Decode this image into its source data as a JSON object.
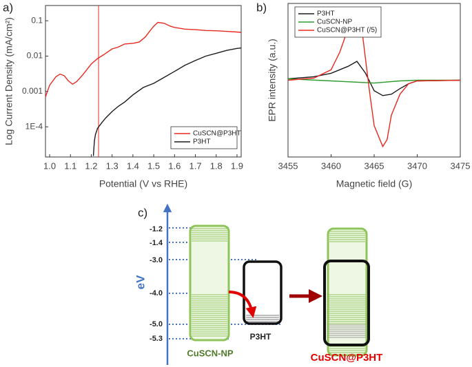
{
  "chart_data": [
    {
      "type": "line",
      "label": "a)",
      "x_label": "Potential (V vs RHE)",
      "y_label": "Log Current Density (mA/cm²)",
      "xlim": [
        0.98,
        1.92
      ],
      "xticks": [
        {
          "value": 1,
          "label": "1.0"
        },
        1.1,
        1.2,
        1.3,
        1.4,
        1.5,
        1.6,
        1.7,
        1.8,
        1.9
      ],
      "ylim": [
        1.4e-05,
        0.27
      ],
      "ylog": true,
      "yticks": [
        {
          "value": 0.0001,
          "label": "1E-4"
        },
        0.001,
        0.01,
        0.1
      ],
      "vline": 1.235,
      "vline_color": "#e8281e",
      "legend": "lower right",
      "series": [
        {
          "name": "CuSCN@P3HT",
          "color": "#e8281e",
          "x": [
            0.98,
            1.0,
            1.03,
            1.05,
            1.07,
            1.09,
            1.11,
            1.13,
            1.16,
            1.2,
            1.23,
            1.26,
            1.3,
            1.33,
            1.36,
            1.4,
            1.43,
            1.46,
            1.48,
            1.5,
            1.52,
            1.55,
            1.58,
            1.6,
            1.65,
            1.7,
            1.75,
            1.8,
            1.85,
            1.9,
            1.92
          ],
          "values": [
            0.0007,
            0.0015,
            0.0026,
            0.0031,
            0.0028,
            0.002,
            0.0016,
            0.0019,
            0.003,
            0.006,
            0.0085,
            0.011,
            0.016,
            0.018,
            0.022,
            0.023,
            0.025,
            0.035,
            0.05,
            0.07,
            0.09,
            0.085,
            0.07,
            0.065,
            0.058,
            0.056,
            0.053,
            0.052,
            0.05,
            0.048,
            0.047
          ]
        },
        {
          "name": "P3HT",
          "color": "#1a1a1a",
          "x": [
            1.21,
            1.215,
            1.22,
            1.23,
            1.25,
            1.27,
            1.3,
            1.33,
            1.36,
            1.4,
            1.45,
            1.5,
            1.55,
            1.6,
            1.65,
            1.7,
            1.75,
            1.8,
            1.85,
            1.9,
            1.92
          ],
          "values": [
            1.5e-05,
            4e-05,
            6e-05,
            9e-05,
            0.00013,
            0.00018,
            0.00027,
            0.00038,
            0.0005,
            0.0008,
            0.0013,
            0.0017,
            0.0025,
            0.0037,
            0.0055,
            0.0075,
            0.01,
            0.012,
            0.0145,
            0.0165,
            0.017
          ]
        }
      ]
    },
    {
      "type": "line",
      "label": "b)",
      "x_label": "Magnetic field (G)",
      "y_label": "EPR intensity (a.u.)",
      "xlim": [
        3455,
        3475
      ],
      "xticks": [
        3455,
        3460,
        3465,
        3470,
        3475
      ],
      "ylim": [
        -1.1,
        1.1
      ],
      "legend": "upper left",
      "series": [
        {
          "name": "P3HT",
          "color": "#1a1a1a",
          "x": [
            3455,
            3458,
            3460,
            3462,
            3463,
            3464,
            3465,
            3466,
            3467,
            3468,
            3469,
            3470,
            3475
          ],
          "values": [
            0.02,
            0.05,
            0.1,
            0.2,
            0.27,
            0.1,
            -0.15,
            -0.22,
            -0.2,
            -0.12,
            -0.05,
            -0.01,
            0
          ]
        },
        {
          "name": "CuSCN-NP",
          "color": "#2e9a2e",
          "x": [
            3455,
            3460,
            3465,
            3468,
            3470,
            3475
          ],
          "values": [
            0.02,
            -0.01,
            -0.04,
            -0.01,
            0,
            0
          ]
        },
        {
          "name": "CuSCN@P3HT (/5)",
          "color": "#e8281e",
          "x": [
            3455,
            3458,
            3460,
            3461,
            3462,
            3463,
            3463.5,
            3464,
            3464.5,
            3465,
            3466,
            3466.5,
            3467,
            3468,
            3469,
            3470,
            3475
          ],
          "values": [
            0,
            0.03,
            0.15,
            0.4,
            0.75,
            1.0,
            0.8,
            0.3,
            -0.2,
            -0.65,
            -0.95,
            -0.85,
            -0.5,
            -0.2,
            -0.05,
            -0.01,
            0
          ]
        }
      ]
    }
  ],
  "diagram": {
    "label": "c)",
    "axis_label": "eV",
    "levels": [
      "-1.2",
      "-1.4",
      "-3.0",
      "-4.0",
      "-5.0",
      "-5.3"
    ],
    "nodes": [
      {
        "label": "CuSCN-NP"
      },
      {
        "label": "P3HT"
      },
      {
        "label": "CuSCN@P3HT"
      }
    ]
  }
}
